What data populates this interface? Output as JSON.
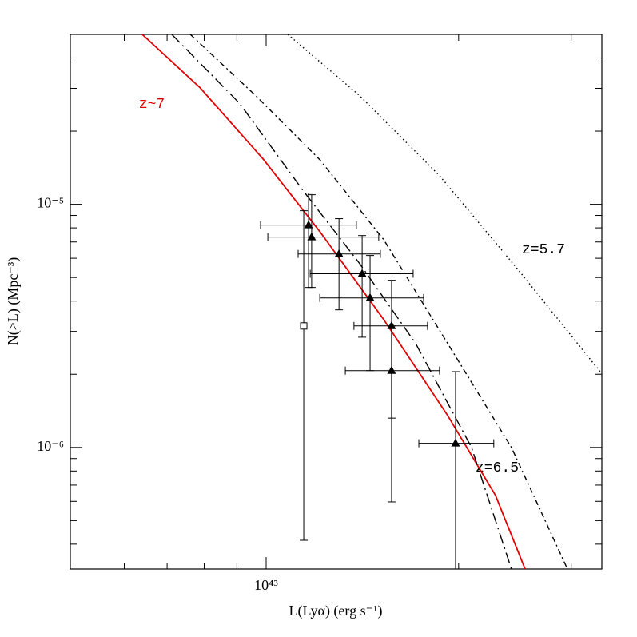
{
  "chart_data": {
    "type": "line",
    "xlabel": "L(Lyα) (erg s⁻¹)",
    "ylabel": "N(>L) (Mpc⁻³)",
    "xscale": "log",
    "yscale": "log",
    "xlim": [
      4.94e+42,
      3.35e+43
    ],
    "ylim": [
      3.16e-07,
      5e-05
    ],
    "xticks": [
      {
        "value": 1e+43,
        "label": "10⁴³"
      }
    ],
    "minor_xticks": [
      6e+42,
      7e+42,
      8e+42,
      9e+42,
      2e+43,
      3e+43
    ],
    "yticks": [
      {
        "value": 1e-06,
        "label": "10⁻⁶"
      },
      {
        "value": 1e-05,
        "label": "10⁻⁵"
      }
    ],
    "minor_yticks": [
      4e-07,
      5e-07,
      6e-07,
      7e-07,
      8e-07,
      9e-07,
      2e-06,
      3e-06,
      4e-06,
      5e-06,
      6e-06,
      7e-06,
      8e-06,
      9e-06,
      2e-05,
      3e-05,
      4e-05
    ],
    "series": [
      {
        "name": "z~7",
        "color": "#e00000",
        "dash": "solid",
        "x": [
          6.4e+42,
          7.88e+42,
          9.91e+42,
          1.213e+43,
          1.527e+43,
          1.922e+43,
          2.284e+43,
          2.541e+43
        ],
        "y": [
          5e-05,
          3.02e-05,
          1.527e-05,
          7.73e-06,
          3.36e-06,
          1.355e-06,
          6.35e-07,
          3.16e-07
        ]
      },
      {
        "name": "z=6.5",
        "color": "#000000",
        "dash": "longdashdot",
        "x": [
          7.12e+42,
          9.09e+42,
          1.145e+43,
          1.4e+43,
          1.713e+43,
          2.095e+43,
          2.419e+43
        ],
        "y": [
          5e-05,
          2.6e-05,
          1.129e-05,
          5.71e-06,
          2.68e-06,
          1e-06,
          3.16e-07
        ]
      },
      {
        "color": "#000000",
        "dash": "dashdot",
        "x": [
          7.61e+42,
          9.63e+42,
          1.213e+43,
          1.527e+43,
          1.922e+43,
          2.419e+43,
          2.96e+43
        ],
        "y": [
          5e-05,
          2.8e-05,
          1.527e-05,
          7.16e-06,
          2.68e-06,
          1e-06,
          3.16e-07
        ]
      },
      {
        "name": "z=5.7",
        "color": "#000000",
        "dash": "dotted",
        "x": [
          1.081e+43,
          1.4e+43,
          1.867e+43,
          2.49e+43,
          3.35e+43
        ],
        "y": [
          5e-05,
          2.8e-05,
          1.312e-05,
          5.3e-06,
          2.01e-06
        ]
      }
    ],
    "points": {
      "x": [
        1.165e+43,
        1.178e+43,
        1.3e+43,
        1.413e+43,
        1.454e+43,
        1.571e+43,
        1.571e+43,
        1.978e+43
      ],
      "x_low": [
        9.8e+42,
        1.006e+43,
        1.122e+43,
        1.172e+43,
        1.213e+43,
        1.372e+43,
        1.33e+43,
        1.733e+43
      ],
      "x_high": [
        1.384e+43,
        1.5e+43,
        1.509e+43,
        1.698e+43,
        1.763e+43,
        1.788e+43,
        1.867e+43,
        2.27e+43
      ],
      "y": [
        8.21e-06,
        7.33e-06,
        6.25e-06,
        5.18e-06,
        4.12e-06,
        3.16e-06,
        2.07e-06,
        1.04e-06
      ],
      "y_low": [
        4.55e-06,
        4.55e-06,
        3.68e-06,
        2.84e-06,
        2.07e-06,
        1.32e-06,
        5.97e-07,
        3.16e-07
      ],
      "y_high": [
        1.112e-05,
        1.095e-05,
        8.73e-06,
        7.44e-06,
        6.16e-06,
        4.87e-06,
        3.16e-06,
        2.05e-06
      ]
    },
    "square_point": {
      "x": 1.145e+43,
      "y": 3.16e-06,
      "y_low": 4.15e-07,
      "y_high": 9.41e-06
    }
  }
}
